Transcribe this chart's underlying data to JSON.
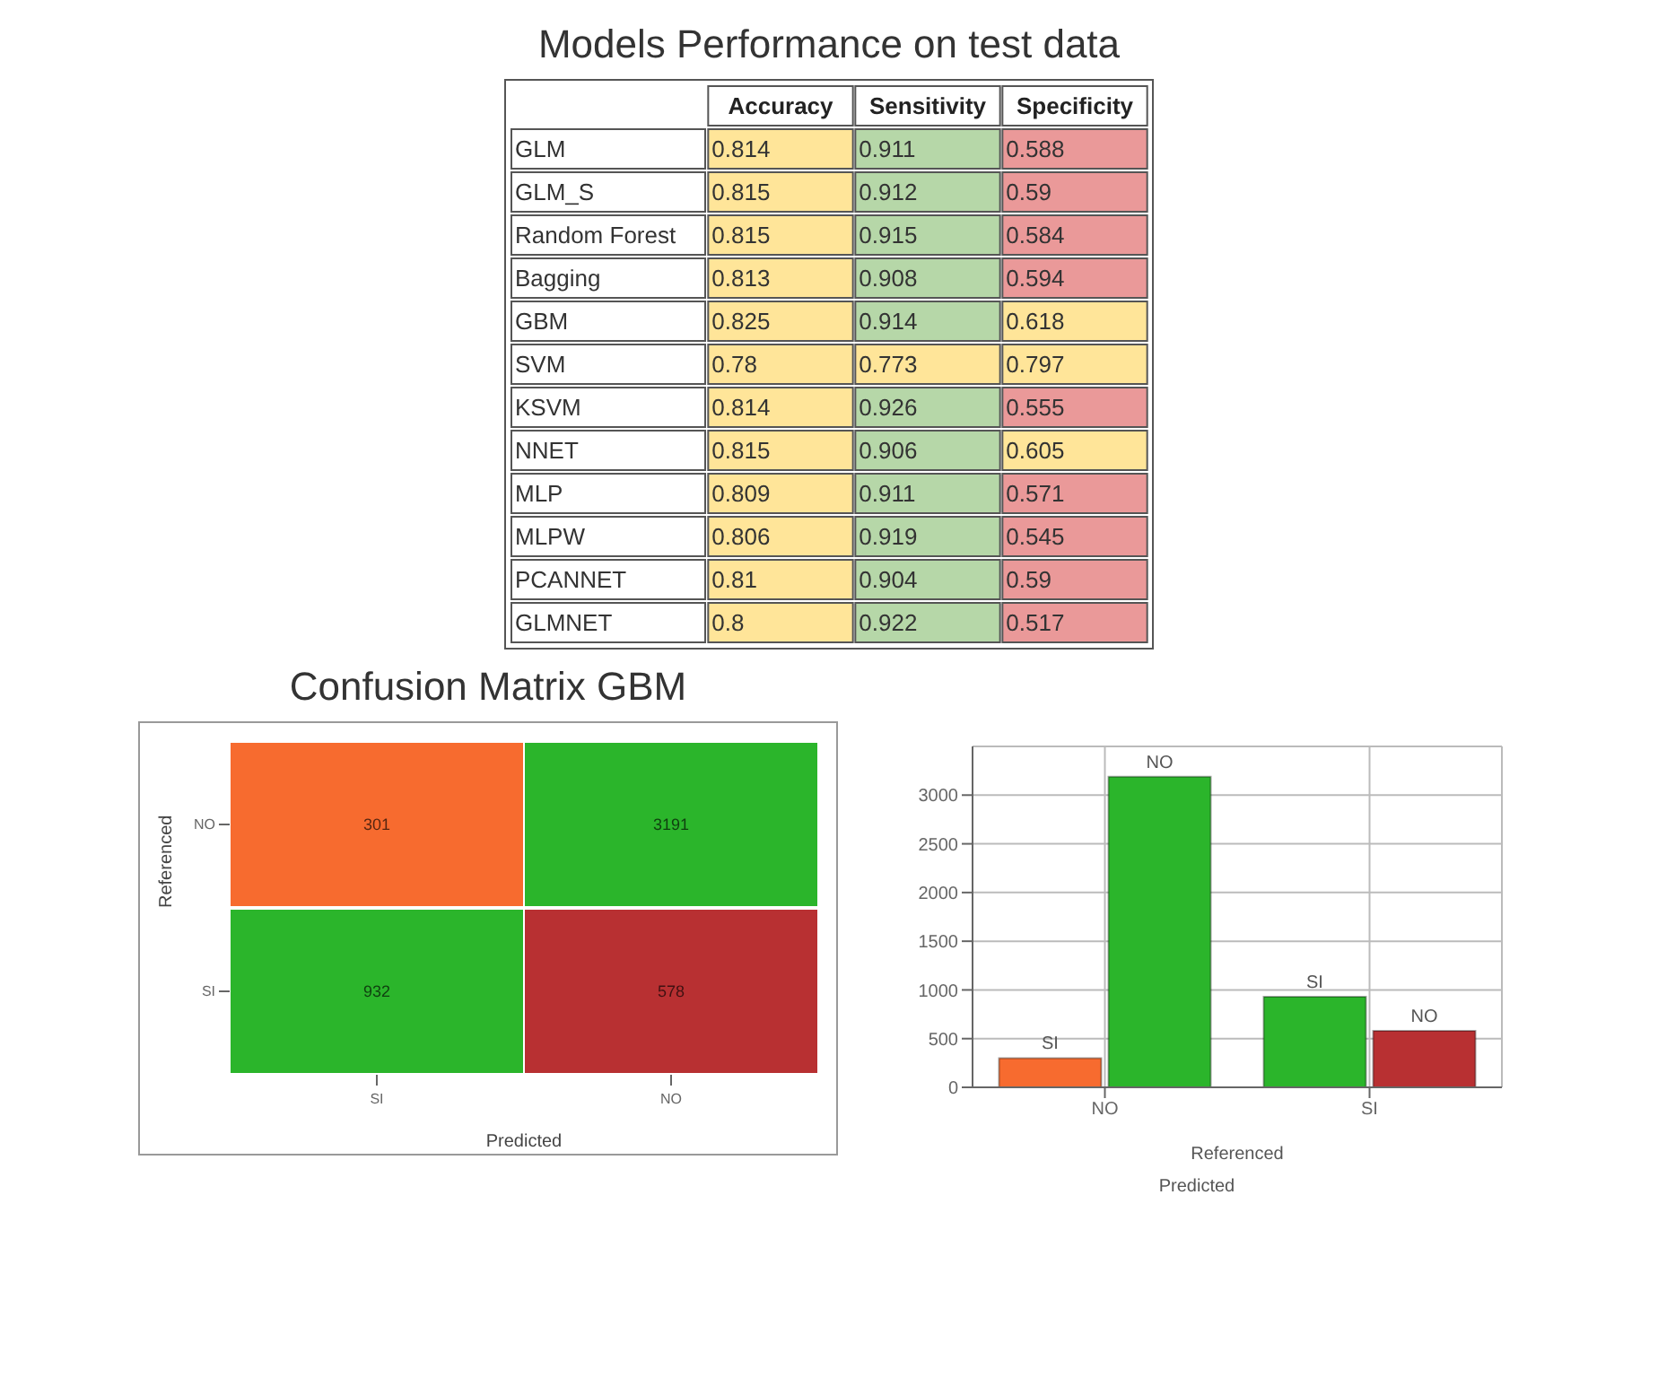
{
  "chart_data": [
    {
      "type": "heatmap",
      "title": "Models Performance on test data",
      "data_labels": true,
      "categories": [
        "Accuracy",
        "Sensitivity",
        "Specificity"
      ],
      "y_categories": [
        "GLM",
        "GLM_S",
        "Random Forest",
        "Bagging",
        "GBM",
        "SVM",
        "KSVM",
        "NNET",
        "MLP",
        "MLPW",
        "PCANNET",
        "GLMNET"
      ],
      "cells": [
        [
          0.814,
          0.911,
          0.588
        ],
        [
          0.815,
          0.912,
          0.59
        ],
        [
          0.815,
          0.915,
          0.584
        ],
        [
          0.813,
          0.908,
          0.594
        ],
        [
          0.825,
          0.914,
          0.618
        ],
        [
          0.78,
          0.773,
          0.797
        ],
        [
          0.814,
          0.926,
          0.555
        ],
        [
          0.815,
          0.906,
          0.605
        ],
        [
          0.809,
          0.911,
          0.571
        ],
        [
          0.806,
          0.919,
          0.545
        ],
        [
          0.81,
          0.904,
          0.59
        ],
        [
          0.8,
          0.922,
          0.517
        ]
      ],
      "colors": [
        [
          "#ffe599",
          "#b6d7a8",
          "#ea9999"
        ],
        [
          "#ffe599",
          "#b6d7a8",
          "#ea9999"
        ],
        [
          "#ffe599",
          "#b6d7a8",
          "#ea9999"
        ],
        [
          "#ffe599",
          "#b6d7a8",
          "#ea9999"
        ],
        [
          "#ffe599",
          "#b6d7a8",
          "#ffe599"
        ],
        [
          "#ffe599",
          "#ffe599",
          "#ffe599"
        ],
        [
          "#ffe599",
          "#b6d7a8",
          "#ea9999"
        ],
        [
          "#ffe599",
          "#b6d7a8",
          "#ffe599"
        ],
        [
          "#ffe599",
          "#b6d7a8",
          "#ea9999"
        ],
        [
          "#ffe599",
          "#b6d7a8",
          "#ea9999"
        ],
        [
          "#ffe599",
          "#b6d7a8",
          "#ea9999"
        ],
        [
          "#ffe599",
          "#b6d7a8",
          "#ea9999"
        ]
      ]
    },
    {
      "type": "heatmap",
      "title": "Confusion Matrix GBM",
      "data_labels": true,
      "xlabel": "Predicted",
      "ylabel": "Referenced",
      "categories": [
        "SI",
        "NO"
      ],
      "y_categories": [
        "NO",
        "SI"
      ],
      "cells": [
        [
          301,
          3191
        ],
        [
          932,
          578
        ]
      ],
      "colors": [
        [
          "#f76b2f",
          "#2bb52b"
        ],
        [
          "#2bb52b",
          "#b83032"
        ]
      ]
    },
    {
      "type": "bar",
      "xlabel": "Referenced",
      "categories": [
        "NO",
        "SI"
      ],
      "series": [
        {
          "name": "SI",
          "colors": [
            "#f76b2f",
            "#2bb52b"
          ],
          "values": [
            300,
            930
          ]
        },
        {
          "name": "NO",
          "colors": [
            "#2bb52b",
            "#b83032"
          ],
          "values": [
            3190,
            580
          ]
        }
      ],
      "ylim": [
        0,
        3500
      ],
      "yticks": [
        0,
        500,
        1000,
        1500,
        2000,
        2500,
        3000
      ],
      "grid": true,
      "annotations": [
        "Predicted"
      ]
    }
  ]
}
